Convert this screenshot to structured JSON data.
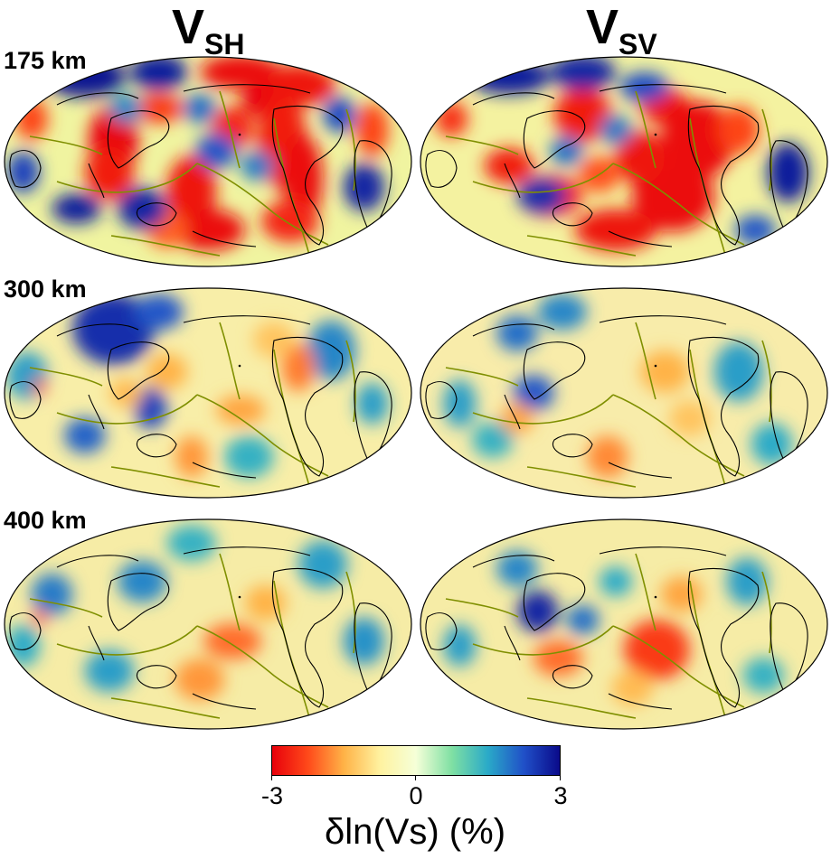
{
  "columns": [
    {
      "main": "V",
      "sub": "SH"
    },
    {
      "main": "V",
      "sub": "SV"
    }
  ],
  "depths": [
    "175 km",
    "300 km",
    "400 km"
  ],
  "colorbar": {
    "label": "δln(Vs) (%)",
    "min": -3,
    "max": 3,
    "ticks": [
      "-3",
      "0",
      "3"
    ],
    "stops": [
      "#e8000b",
      "#ff4a1a",
      "#ffb347",
      "#fff2a0",
      "#f5ffd8",
      "#7fe0a3",
      "#2aaac8",
      "#2050c8",
      "#0a0a8a"
    ]
  },
  "colors": {
    "coastline": "#000000",
    "plate_boundary": "#7f8f00",
    "map_outline": "#000000"
  },
  "maps": [
    [
      {
        "base": "#f0f4a0",
        "anomalies": [
          [
            -2.9,
            0.58,
            0.08,
            0.1,
            0.06
          ],
          [
            -2.8,
            0.72,
            0.14,
            0.09,
            0.07
          ],
          [
            -3,
            0.64,
            0.22,
            0.06,
            0.05
          ],
          [
            -2.6,
            0.56,
            0.34,
            0.05,
            0.07
          ],
          [
            -3,
            0.27,
            0.4,
            0.06,
            0.12
          ],
          [
            -2.7,
            0.26,
            0.55,
            0.06,
            0.09
          ],
          [
            -2.8,
            0.46,
            0.64,
            0.06,
            0.12
          ],
          [
            -2.9,
            0.5,
            0.82,
            0.09,
            0.07
          ],
          [
            -2.7,
            0.68,
            0.4,
            0.06,
            0.16
          ],
          [
            -2.9,
            0.73,
            0.58,
            0.05,
            0.15
          ],
          [
            -2.6,
            0.7,
            0.78,
            0.07,
            0.07
          ],
          [
            -2.4,
            0.38,
            0.25,
            0.06,
            0.05
          ],
          [
            -2.3,
            0.9,
            0.35,
            0.04,
            0.09
          ],
          [
            -2.3,
            0.07,
            0.3,
            0.04,
            0.07
          ],
          [
            -2.1,
            0.4,
            0.82,
            0.05,
            0.06
          ],
          [
            2.9,
            0.2,
            0.1,
            0.1,
            0.07
          ],
          [
            2.8,
            0.38,
            0.08,
            0.07,
            0.06
          ],
          [
            2.7,
            0.34,
            0.72,
            0.06,
            0.07
          ],
          [
            2.8,
            0.18,
            0.72,
            0.06,
            0.05
          ],
          [
            2.7,
            0.88,
            0.62,
            0.05,
            0.08
          ],
          [
            2.3,
            0.82,
            0.28,
            0.04,
            0.06
          ],
          [
            2.2,
            0.52,
            0.45,
            0.05,
            0.06
          ],
          [
            2.0,
            0.48,
            0.25,
            0.04,
            0.05
          ],
          [
            2.4,
            0.05,
            0.55,
            0.04,
            0.07
          ],
          [
            1.8,
            0.3,
            0.25,
            0.04,
            0.05
          ],
          [
            1.9,
            0.62,
            0.52,
            0.04,
            0.05
          ]
        ]
      },
      {
        "base": "#f4f2a0",
        "anomalies": [
          [
            -2.7,
            0.4,
            0.28,
            0.07,
            0.09
          ],
          [
            -2.8,
            0.6,
            0.24,
            0.06,
            0.06
          ],
          [
            -2.9,
            0.68,
            0.4,
            0.09,
            0.13
          ],
          [
            -2.9,
            0.62,
            0.66,
            0.1,
            0.12
          ],
          [
            -2.8,
            0.48,
            0.82,
            0.1,
            0.07
          ],
          [
            -2.6,
            0.32,
            0.66,
            0.08,
            0.07
          ],
          [
            -2.7,
            0.22,
            0.52,
            0.06,
            0.06
          ],
          [
            -2.5,
            0.08,
            0.3,
            0.04,
            0.06
          ],
          [
            -2.8,
            0.54,
            0.48,
            0.06,
            0.09
          ],
          [
            -2.3,
            0.78,
            0.35,
            0.05,
            0.08
          ],
          [
            -2.2,
            0.44,
            0.56,
            0.05,
            0.06
          ],
          [
            2.8,
            0.22,
            0.1,
            0.1,
            0.06
          ],
          [
            2.7,
            0.4,
            0.08,
            0.08,
            0.06
          ],
          [
            2.6,
            0.3,
            0.66,
            0.06,
            0.06
          ],
          [
            2.8,
            0.9,
            0.55,
            0.05,
            0.1
          ],
          [
            2.3,
            0.55,
            0.15,
            0.06,
            0.05
          ],
          [
            2.2,
            0.82,
            0.82,
            0.05,
            0.05
          ],
          [
            1.9,
            0.48,
            0.35,
            0.04,
            0.05
          ],
          [
            2.0,
            0.36,
            0.45,
            0.04,
            0.05
          ]
        ]
      }
    ],
    [
      {
        "base": "#f8eea8",
        "anomalies": [
          [
            2.6,
            0.27,
            0.2,
            0.1,
            0.12
          ],
          [
            2.2,
            0.38,
            0.12,
            0.06,
            0.06
          ],
          [
            2.4,
            0.36,
            0.57,
            0.04,
            0.07
          ],
          [
            2.1,
            0.2,
            0.7,
            0.05,
            0.06
          ],
          [
            1.8,
            0.8,
            0.3,
            0.06,
            0.1
          ],
          [
            1.6,
            0.9,
            0.55,
            0.04,
            0.07
          ],
          [
            1.6,
            0.06,
            0.42,
            0.05,
            0.08
          ],
          [
            1.4,
            0.6,
            0.8,
            0.06,
            0.07
          ],
          [
            -1.9,
            0.72,
            0.38,
            0.04,
            0.08
          ],
          [
            -1.6,
            0.58,
            0.58,
            0.06,
            0.05
          ],
          [
            -1.7,
            0.46,
            0.8,
            0.04,
            0.07
          ],
          [
            -1.5,
            0.4,
            0.4,
            0.05,
            0.06
          ],
          [
            -2.2,
            0.09,
            0.47,
            0.015,
            0.03
          ],
          [
            -1.4,
            0.3,
            0.5,
            0.04,
            0.05
          ],
          [
            -1.3,
            0.66,
            0.25,
            0.05,
            0.06
          ]
        ]
      },
      {
        "base": "#f8ecaa",
        "anomalies": [
          [
            2.2,
            0.28,
            0.5,
            0.05,
            0.06
          ],
          [
            2.0,
            0.24,
            0.22,
            0.05,
            0.06
          ],
          [
            1.8,
            0.35,
            0.12,
            0.06,
            0.06
          ],
          [
            1.6,
            0.1,
            0.55,
            0.04,
            0.08
          ],
          [
            1.6,
            0.78,
            0.4,
            0.06,
            0.1
          ],
          [
            1.5,
            0.86,
            0.74,
            0.05,
            0.07
          ],
          [
            1.4,
            0.18,
            0.72,
            0.05,
            0.06
          ],
          [
            -1.8,
            0.46,
            0.8,
            0.05,
            0.07
          ],
          [
            -1.5,
            0.6,
            0.4,
            0.06,
            0.07
          ],
          [
            -1.6,
            0.24,
            0.62,
            0.04,
            0.05
          ],
          [
            -1.3,
            0.66,
            0.62,
            0.05,
            0.06
          ]
        ]
      }
    ],
    [
      {
        "base": "#f6eca6",
        "anomalies": [
          [
            1.9,
            0.12,
            0.36,
            0.05,
            0.07
          ],
          [
            1.8,
            0.34,
            0.3,
            0.06,
            0.07
          ],
          [
            1.6,
            0.26,
            0.72,
            0.06,
            0.07
          ],
          [
            1.6,
            0.78,
            0.22,
            0.06,
            0.08
          ],
          [
            1.7,
            0.88,
            0.58,
            0.05,
            0.08
          ],
          [
            1.4,
            0.46,
            0.12,
            0.06,
            0.06
          ],
          [
            1.5,
            0.05,
            0.6,
            0.04,
            0.07
          ],
          [
            -2.0,
            0.56,
            0.58,
            0.07,
            0.06
          ],
          [
            -1.7,
            0.48,
            0.76,
            0.06,
            0.07
          ],
          [
            -1.5,
            0.64,
            0.4,
            0.05,
            0.06
          ],
          [
            -2.2,
            0.09,
            0.47,
            0.015,
            0.03
          ]
        ]
      },
      {
        "base": "#f6eca6",
        "anomalies": [
          [
            2.7,
            0.29,
            0.44,
            0.05,
            0.07
          ],
          [
            2.0,
            0.4,
            0.48,
            0.04,
            0.05
          ],
          [
            1.8,
            0.24,
            0.24,
            0.05,
            0.06
          ],
          [
            1.6,
            0.1,
            0.6,
            0.04,
            0.07
          ],
          [
            1.6,
            0.8,
            0.3,
            0.05,
            0.08
          ],
          [
            1.5,
            0.48,
            0.3,
            0.04,
            0.05
          ],
          [
            1.4,
            0.84,
            0.74,
            0.05,
            0.06
          ],
          [
            -2.4,
            0.58,
            0.62,
            0.08,
            0.1
          ],
          [
            -2.0,
            0.34,
            0.66,
            0.06,
            0.06
          ],
          [
            -1.6,
            0.64,
            0.36,
            0.05,
            0.06
          ],
          [
            -1.4,
            0.52,
            0.8,
            0.05,
            0.06
          ]
        ]
      }
    ]
  ]
}
